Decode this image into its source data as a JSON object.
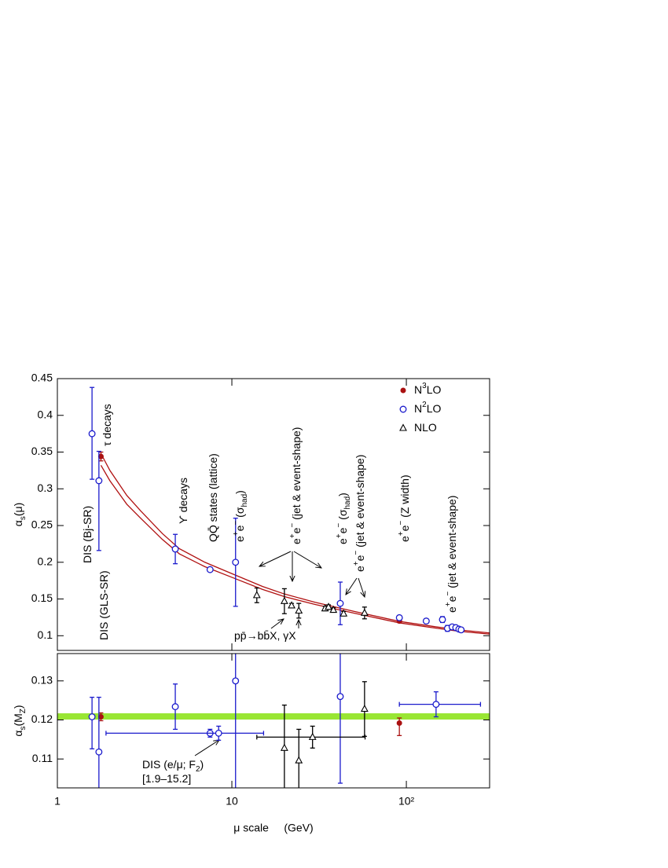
{
  "chart_data": [
    {
      "type": "scatter",
      "ylabel": [
        {
          "text": "α"
        },
        {
          "text": "s",
          "pos": "sub"
        },
        {
          "text": "(μ)"
        }
      ],
      "xlim": [
        1,
        300
      ],
      "log_x": true,
      "ylim": [
        0.08,
        0.45
      ],
      "yticks": [
        0.1,
        0.15,
        0.2,
        0.25,
        0.3,
        0.35,
        0.4,
        0.45
      ],
      "legend": "top-right",
      "band": {
        "color": "#b01010",
        "x": [
          1.777,
          2,
          2.5,
          3,
          4,
          5,
          7,
          10,
          15,
          20,
          30,
          50,
          91.19,
          150,
          200,
          300
        ],
        "upper": [
          0.348,
          0.325,
          0.291,
          0.27,
          0.239,
          0.2185,
          0.2,
          0.1845,
          0.167,
          0.1568,
          0.1455,
          0.1332,
          0.1195,
          0.1119,
          0.1079,
          0.1038
        ],
        "lower": [
          0.332,
          0.311,
          0.279,
          0.26,
          0.231,
          0.2115,
          0.194,
          0.1795,
          0.163,
          0.1532,
          0.1425,
          0.1308,
          0.1175,
          0.1101,
          0.1061,
          0.1022
        ]
      },
      "series": [
        {
          "name": [
            {
              "text": "N"
            },
            {
              "text": "3",
              "pos": "sup"
            },
            {
              "text": "LO"
            }
          ],
          "marker": "filled-circle",
          "color": "#aa1111",
          "x": [
            1.777,
            91.19
          ],
          "values": [
            0.344,
            0.12
          ],
          "err_down": [
            0.006,
            0.002
          ],
          "err_up": [
            0.006,
            0.002
          ],
          "x_min": [
            null,
            null
          ],
          "x_max": [
            null,
            null
          ]
        },
        {
          "name": [
            {
              "text": "N"
            },
            {
              "text": "2",
              "pos": "sup"
            },
            {
              "text": "LO"
            }
          ],
          "marker": "open-circle",
          "color": "#1a1acc",
          "x": [
            1.58,
            1.73,
            4.74,
            7.5,
            10.5,
            41.8,
            91.19,
            130,
            161,
            172,
            183,
            192,
            200,
            206
          ],
          "values": [
            0.375,
            0.311,
            0.218,
            0.19,
            0.2,
            0.144,
            0.1245,
            0.12,
            0.122,
            0.11,
            0.112,
            0.111,
            0.109,
            0.108
          ],
          "err_down": [
            0.062,
            0.095,
            0.02,
            0.002,
            0.06,
            0.029,
            0.003,
            0.003,
            0.004,
            0.004,
            0.002,
            0.002,
            0.002,
            0.002
          ],
          "err_up": [
            0.063,
            0.04,
            0.02,
            0.002,
            0.06,
            0.029,
            0.003,
            0.003,
            0.004,
            0.004,
            0.002,
            0.002,
            0.002,
            0.002
          ],
          "x_min": [
            null,
            null,
            null,
            null,
            null,
            null,
            null,
            null,
            null,
            null,
            null,
            null,
            null,
            null
          ],
          "x_max": [
            null,
            null,
            null,
            null,
            null,
            null,
            null,
            null,
            null,
            null,
            null,
            null,
            null,
            null
          ]
        },
        {
          "name": [
            {
              "text": "NLO"
            }
          ],
          "marker": "open-triangle",
          "color": "#000000",
          "x": [
            13.9,
            20,
            22,
            24.2,
            34.2,
            35.8,
            38.2,
            43.7,
            57.6
          ],
          "values": [
            0.155,
            0.147,
            0.141,
            0.134,
            0.137,
            0.139,
            0.135,
            0.13,
            0.131
          ],
          "err_down": [
            0.01,
            0.017,
            0.003,
            0.01,
            0.003,
            0.003,
            0.003,
            0.003,
            0.008
          ],
          "err_up": [
            0.01,
            0.017,
            0.003,
            0.01,
            0.003,
            0.003,
            0.003,
            0.003,
            0.008
          ],
          "x_min": [
            null,
            null,
            null,
            null,
            null,
            null,
            null,
            null,
            null
          ],
          "x_max": [
            null,
            null,
            null,
            null,
            null,
            null,
            null,
            null,
            null
          ]
        }
      ],
      "annotations": [
        [
          {
            "text": "DIS (Bj-SR)"
          }
        ],
        [
          {
            "text": "DIS (GLS-SR)"
          }
        ],
        [
          {
            "text": "τ decays"
          }
        ],
        [
          {
            "text": "ϒ decays"
          }
        ],
        [
          {
            "text": "QQ̄ states (lattice)"
          }
        ],
        [
          {
            "text": "e"
          },
          {
            "text": "+",
            "pos": "sup"
          },
          {
            "text": "e"
          },
          {
            "text": "−",
            "pos": "sup"
          },
          {
            "text": " (σ"
          },
          {
            "text": "had",
            "pos": "sub"
          },
          {
            "text": ")"
          }
        ],
        [
          {
            "text": "e"
          },
          {
            "text": "+",
            "pos": "sup"
          },
          {
            "text": "e"
          },
          {
            "text": "−",
            "pos": "sup"
          },
          {
            "text": " (jet & event-shape)"
          }
        ],
        [
          {
            "text": "e"
          },
          {
            "text": "+",
            "pos": "sup"
          },
          {
            "text": "e"
          },
          {
            "text": "−",
            "pos": "sup"
          },
          {
            "text": " (σ"
          },
          {
            "text": "had",
            "pos": "sub"
          },
          {
            "text": ")"
          }
        ],
        [
          {
            "text": "e"
          },
          {
            "text": "+",
            "pos": "sup"
          },
          {
            "text": "e"
          },
          {
            "text": "−",
            "pos": "sup"
          },
          {
            "text": " (jet & event-shape)"
          }
        ],
        [
          {
            "text": "e"
          },
          {
            "text": "+",
            "pos": "sup"
          },
          {
            "text": "e"
          },
          {
            "text": "−",
            "pos": "sup"
          },
          {
            "text": " (Z width)"
          }
        ],
        [
          {
            "text": "e"
          },
          {
            "text": "+",
            "pos": "sup"
          },
          {
            "text": "e"
          },
          {
            "text": "−",
            "pos": "sup"
          },
          {
            "text": " (jet & event-shape)"
          }
        ],
        [
          {
            "text": "pp̄→bb̄X, γX"
          }
        ]
      ]
    },
    {
      "type": "scatter",
      "ylabel": [
        {
          "text": "α"
        },
        {
          "text": "s",
          "pos": "sub"
        },
        {
          "text": "(M"
        },
        {
          "text": "Z",
          "pos": "sub"
        },
        {
          "text": ")"
        }
      ],
      "xlabel": "μ scale     (GeV)",
      "xlim": [
        1,
        300
      ],
      "log_x": true,
      "xticks": [
        1,
        10,
        {
          "value": 100,
          "label": "10²"
        }
      ],
      "ylim": [
        0.1026,
        0.137
      ],
      "yticks": [
        0.11,
        0.12,
        0.13
      ],
      "hband": {
        "lower": 0.1201,
        "upper": 0.1217,
        "color": "#99e633"
      },
      "series": [
        {
          "marker": "filled-circle",
          "color": "#aa1111",
          "x": [
            1.777,
            91.19
          ],
          "values": [
            0.1208,
            0.1192
          ],
          "err_down": [
            0.001,
            0.0032
          ],
          "err_up": [
            0.001,
            0.0013
          ],
          "x_min": [
            null,
            null
          ],
          "x_max": [
            null,
            null
          ]
        },
        {
          "marker": "open-circle",
          "color": "#1a1acc",
          "x": [
            1.58,
            1.73,
            4.74,
            7.5,
            8.4,
            10.5,
            41.8,
            148
          ],
          "values": [
            0.1208,
            0.1118,
            0.1234,
            0.1166,
            0.1166,
            0.13,
            0.126,
            0.124
          ],
          "err_down": [
            0.0082,
            0.01,
            0.0058,
            0.001,
            0.0018,
            0.03,
            0.0222,
            0.0032
          ],
          "err_up": [
            0.005,
            0.014,
            0.0058,
            0.001,
            0.0018,
            0.03,
            0.014,
            0.0032
          ],
          "x_min": [
            null,
            null,
            null,
            null,
            1.9,
            null,
            null,
            91.19
          ],
          "x_max": [
            null,
            null,
            null,
            null,
            15.2,
            null,
            null,
            266
          ]
        },
        {
          "marker": "open-triangle",
          "color": "#000000",
          "x": [
            20,
            24.2,
            29,
            57.6
          ],
          "values": [
            0.1128,
            0.1096,
            0.1156,
            0.1228
          ],
          "err_down": [
            0.011,
            0.008,
            0.0028,
            0.007
          ],
          "err_up": [
            0.011,
            0.008,
            0.0028,
            0.007
          ],
          "x_min": [
            null,
            null,
            13.9,
            null
          ],
          "x_max": [
            null,
            null,
            58,
            null
          ]
        }
      ],
      "annotations": [
        [
          {
            "text": "DIS (e/μ; F"
          },
          {
            "text": "2",
            "pos": "sub"
          },
          {
            "text": ")"
          }
        ],
        [
          {
            "text": "[1.9–15.2]"
          }
        ]
      ]
    }
  ]
}
